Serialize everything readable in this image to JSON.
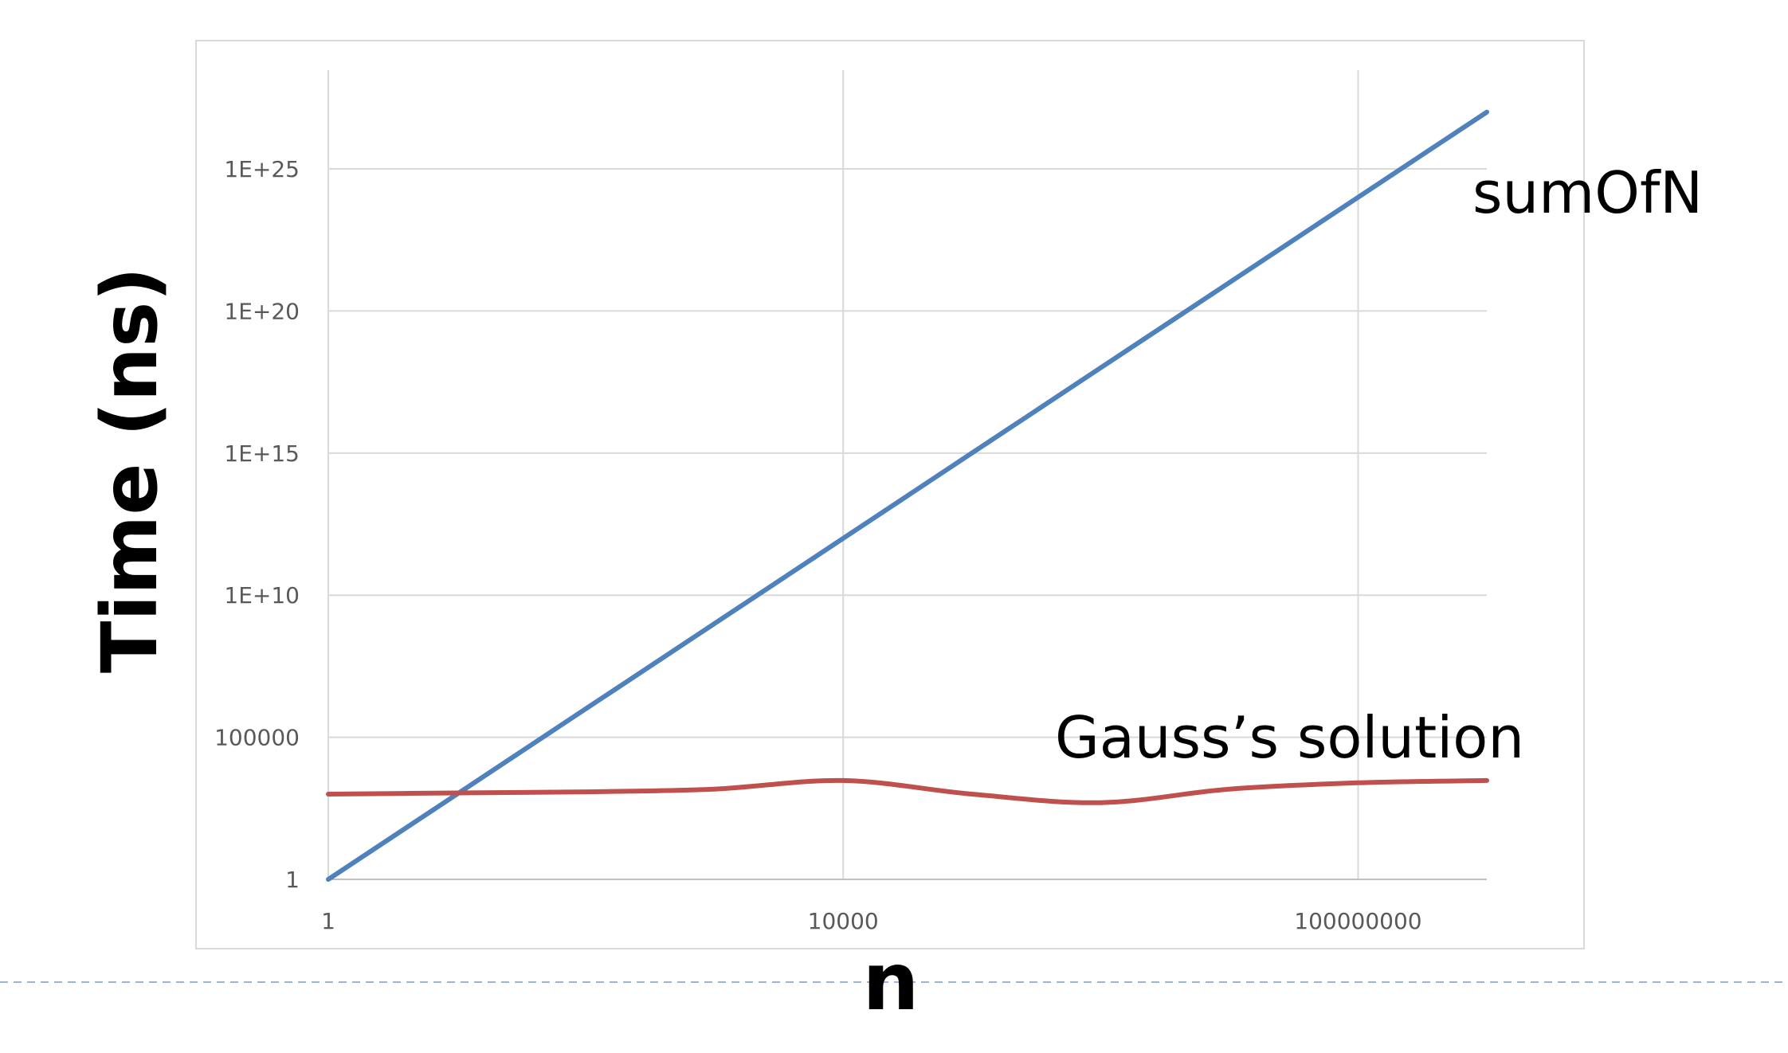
{
  "chart_data": {
    "type": "line",
    "title": "",
    "xlabel": "n",
    "ylabel": "Time (ns)",
    "x_scale": "log",
    "y_scale": "log",
    "x": [
      1,
      10,
      100,
      1000,
      10000,
      100000,
      1000000,
      10000000,
      100000000,
      1000000000
    ],
    "x_ticks": [
      1,
      10000,
      100000000
    ],
    "x_tick_labels": [
      "1",
      "10000",
      "100000000"
    ],
    "y_ticks": [
      1,
      100000,
      10000000000,
      1000000000000000,
      100000000000000000000,
      1e+25
    ],
    "y_tick_labels": [
      "1",
      "100000",
      "1E+10",
      "1E+15",
      "1E+20",
      "1E+25"
    ],
    "xlim": [
      1,
      1000000000
    ],
    "ylim": [
      1,
      1e+28
    ],
    "grid": true,
    "series": [
      {
        "name": "sumOfN",
        "color": "#4f81bd",
        "values": [
          1,
          1000.0,
          1000000.0,
          1000000000.0,
          1000000000000.0,
          1000000000000000.0,
          1e+18,
          1e+21,
          1e+24,
          1e+27
        ]
      },
      {
        "name": "Gauss's solution",
        "color": "#c0504d",
        "values": [
          1000,
          1100,
          1200,
          1500,
          3000,
          1000,
          500,
          1500,
          2500,
          3000
        ]
      }
    ],
    "annotations": [
      {
        "text": "sumOfN",
        "series": "sumOfN"
      },
      {
        "text": "Gauss’s solution",
        "series": "Gauss's solution"
      }
    ]
  }
}
